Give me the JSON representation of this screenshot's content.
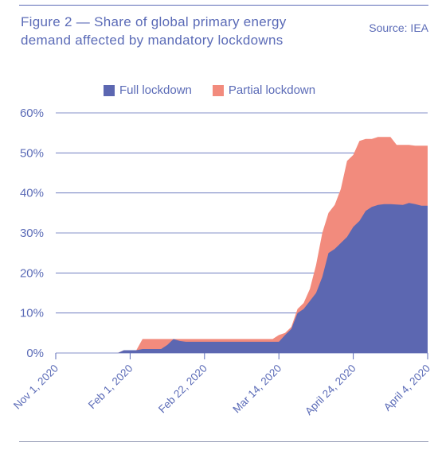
{
  "header": {
    "title_line1": "Figure 2 — Share of global primary energy",
    "title_line2": "demand affected by mandatory lockdowns",
    "source": "Source: IEA"
  },
  "chart_data": {
    "type": "area",
    "stacked": true,
    "title": "Figure 2 — Share of global primary energy demand affected by mandatory lockdowns",
    "ylim": [
      0,
      60
    ],
    "yticks": [
      0,
      10,
      20,
      30,
      40,
      50,
      60
    ],
    "ytick_labels": [
      "0%",
      "10%",
      "20%",
      "30%",
      "40%",
      "50%",
      "60%"
    ],
    "xtick_labels": [
      "Nov 1, 2020",
      "Feb 1, 2020",
      "Feb 22, 2020",
      "Mar 14, 2020",
      "April 24, 2020",
      "April 4, 2020"
    ],
    "grid": "horizontal",
    "legend_position": "top",
    "colors": {
      "full": "#5c67b1",
      "partial": "#f28b7d",
      "text": "#5b6bb7",
      "grid": "#5b6bb7"
    },
    "series": [
      {
        "name": "Full lockdown",
        "color": "#5c67b1",
        "points": [
          [
            0,
            0
          ],
          [
            10,
            0
          ],
          [
            11,
            0.7
          ],
          [
            13,
            0.7
          ],
          [
            14,
            1
          ],
          [
            17,
            1
          ],
          [
            18,
            2
          ],
          [
            19,
            3.5
          ],
          [
            20,
            3
          ],
          [
            21,
            2.8
          ],
          [
            28,
            2.8
          ],
          [
            35,
            2.8
          ],
          [
            36,
            2.8
          ],
          [
            37,
            4.5
          ],
          [
            38,
            6
          ],
          [
            39,
            10
          ],
          [
            40,
            11
          ],
          [
            41,
            13
          ],
          [
            42,
            15
          ],
          [
            43,
            19
          ],
          [
            44,
            25
          ],
          [
            45,
            26
          ],
          [
            46,
            27.5
          ],
          [
            47,
            29
          ],
          [
            48,
            31.5
          ],
          [
            49,
            33
          ],
          [
            50,
            35.5
          ],
          [
            51,
            36.5
          ],
          [
            52,
            37
          ],
          [
            53,
            37.2
          ],
          [
            54,
            37.2
          ],
          [
            56,
            37
          ],
          [
            57,
            37.5
          ],
          [
            58,
            37.2
          ],
          [
            59,
            36.8
          ],
          [
            60,
            36.8
          ]
        ]
      },
      {
        "name": "Partial lockdown",
        "color": "#f28b7d",
        "points": [
          [
            0,
            0
          ],
          [
            10,
            0
          ],
          [
            11,
            0.7
          ],
          [
            13,
            0.7
          ],
          [
            14,
            3.5
          ],
          [
            17,
            3.5
          ],
          [
            18,
            3.5
          ],
          [
            19,
            3.5
          ],
          [
            20,
            3.5
          ],
          [
            21,
            3.5
          ],
          [
            28,
            3.5
          ],
          [
            35,
            3.5
          ],
          [
            36,
            4.5
          ],
          [
            37,
            5
          ],
          [
            38,
            6.5
          ],
          [
            39,
            11
          ],
          [
            40,
            12.5
          ],
          [
            41,
            16
          ],
          [
            42,
            22
          ],
          [
            43,
            30
          ],
          [
            44,
            35
          ],
          [
            45,
            37
          ],
          [
            46,
            41
          ],
          [
            47,
            48
          ],
          [
            48,
            49.5
          ],
          [
            49,
            53
          ],
          [
            50,
            53.5
          ],
          [
            51,
            53.5
          ],
          [
            52,
            54
          ],
          [
            53,
            54
          ],
          [
            54,
            54
          ],
          [
            55,
            52
          ],
          [
            56,
            52
          ],
          [
            57,
            52
          ],
          [
            58,
            51.8
          ],
          [
            59,
            51.8
          ],
          [
            60,
            51.8
          ]
        ]
      }
    ],
    "x_domain": [
      0,
      60
    ]
  }
}
